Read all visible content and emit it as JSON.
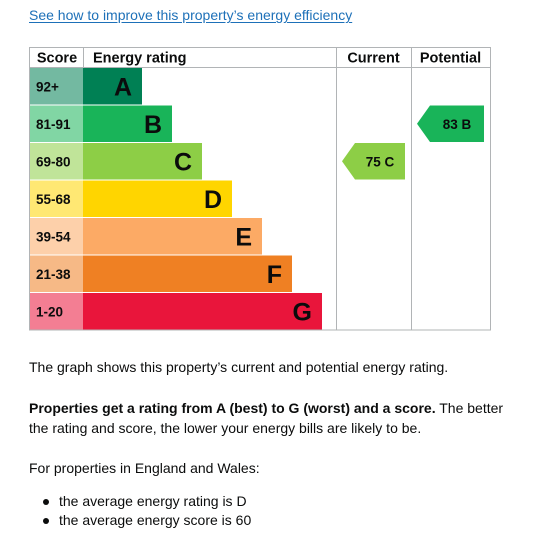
{
  "links": {
    "improve_link": "See how to improve this property’s energy efficiency"
  },
  "chart_data": {
    "type": "bar",
    "headers": {
      "score": "Score",
      "energy_rating": "Energy rating",
      "current": "Current",
      "potential": "Potential"
    },
    "bands": [
      {
        "range": "92+",
        "letter": "A",
        "min": 92,
        "color": "#008054"
      },
      {
        "range": "81-91",
        "letter": "B",
        "min": 81,
        "color": "#19b459"
      },
      {
        "range": "69-80",
        "letter": "C",
        "min": 69,
        "color": "#8dce46"
      },
      {
        "range": "55-68",
        "letter": "D",
        "min": 55,
        "color": "#ffd500"
      },
      {
        "range": "39-54",
        "letter": "E",
        "min": 39,
        "color": "#fcaa65"
      },
      {
        "range": "21-38",
        "letter": "F",
        "min": 21,
        "color": "#ef8023"
      },
      {
        "range": "1-20",
        "letter": "G",
        "min": 1,
        "color": "#e9153b"
      }
    ],
    "current": {
      "score": 75,
      "letter": "C",
      "label": "75 C",
      "color": "#8dce46"
    },
    "potential": {
      "score": 83,
      "letter": "B",
      "label": "83 B",
      "color": "#19b459"
    }
  },
  "text": {
    "graph_caption": "The graph shows this property’s current and potential energy rating.",
    "rating_bold": "Properties get a rating from A (best) to G (worst) and a score.",
    "rating_rest": " The better the rating and score, the lower your energy bills are likely to be.",
    "england_wales": "For properties in England and Wales:",
    "bullets": [
      "the average energy rating is D",
      "the average energy score is 60"
    ]
  }
}
